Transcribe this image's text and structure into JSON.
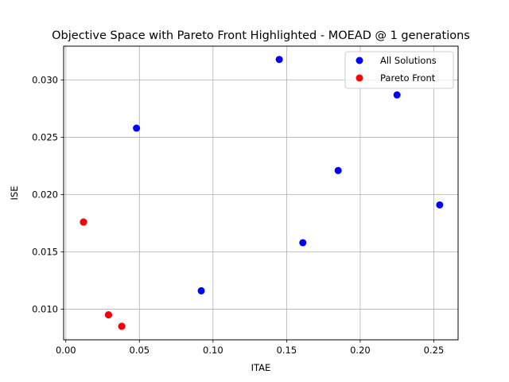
{
  "chart_data": {
    "type": "scatter",
    "title": "Objective Space with Pareto Front Highlighted - MOEAD @ 1 generations",
    "xlabel": "ITAE",
    "ylabel": "ISE",
    "xlim": [
      -0.0015,
      0.2665
    ],
    "ylim": [
      0.00732,
      0.03296
    ],
    "xticks": [
      0.0,
      0.05,
      0.1,
      0.15,
      0.2,
      0.25
    ],
    "xtick_labels": [
      "0.00",
      "0.05",
      "0.10",
      "0.15",
      "0.20",
      "0.25"
    ],
    "yticks": [
      0.01,
      0.015,
      0.02,
      0.025,
      0.03
    ],
    "ytick_labels": [
      "0.010",
      "0.015",
      "0.020",
      "0.025",
      "0.030"
    ],
    "grid": true,
    "legend_position": "top-right",
    "series": [
      {
        "name": "All Solutions",
        "color": "#0000ff",
        "points": [
          {
            "x": 0.048,
            "y": 0.0258
          },
          {
            "x": 0.145,
            "y": 0.0318
          },
          {
            "x": 0.225,
            "y": 0.0287
          },
          {
            "x": 0.185,
            "y": 0.0221
          },
          {
            "x": 0.254,
            "y": 0.0191
          },
          {
            "x": 0.161,
            "y": 0.0158
          },
          {
            "x": 0.092,
            "y": 0.0116
          },
          {
            "x": 0.012,
            "y": 0.0176
          },
          {
            "x": 0.029,
            "y": 0.0095
          },
          {
            "x": 0.038,
            "y": 0.0085
          }
        ]
      },
      {
        "name": "Pareto Front",
        "color": "#ff0000",
        "points": [
          {
            "x": 0.012,
            "y": 0.0176
          },
          {
            "x": 0.029,
            "y": 0.0095
          },
          {
            "x": 0.038,
            "y": 0.0085
          }
        ]
      }
    ]
  }
}
